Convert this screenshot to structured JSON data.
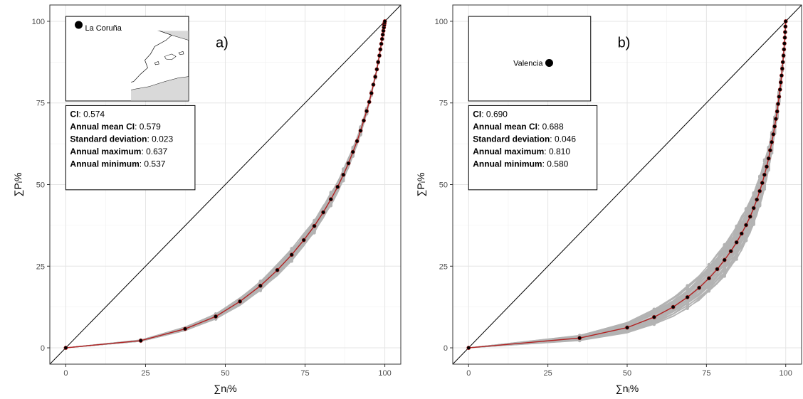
{
  "chart_data": [
    {
      "type": "line",
      "panel_label": "a)",
      "xlabel": "∑nᵢ%",
      "ylabel": "∑Pᵢ%",
      "xlim": [
        -5,
        105
      ],
      "ylim": [
        -5,
        105
      ],
      "x_ticks": [
        0,
        25,
        50,
        75,
        100
      ],
      "y_ticks": [
        0,
        25,
        50,
        75,
        100
      ],
      "grid": true,
      "diagonal": true,
      "location": "La Coruña",
      "colors": {
        "annual": "#b3b3b3",
        "mean_line": "#b22222",
        "mean_points": "#000000",
        "map_land": "#d9d9d9"
      },
      "stats": [
        {
          "label": "CI",
          "value": ": 0.574"
        },
        {
          "label": "Annual mean CI",
          "value": ": 0.579"
        },
        {
          "label": "Standard deviation",
          "value": ": 0.023"
        },
        {
          "label": "Annual maximum",
          "value": ": 0.637"
        },
        {
          "label": "Annual minimum",
          "value": ": 0.537"
        }
      ],
      "series": [
        {
          "role": "overall",
          "x": [
            0,
            23.5,
            37.4,
            47.0,
            54.6,
            61.0,
            66.3,
            70.8,
            74.6,
            77.9,
            80.7,
            83.1,
            85.2,
            87.0,
            88.6,
            90.0,
            91.3,
            92.4,
            93.4,
            94.3,
            95.1,
            95.8,
            96.4,
            97.0,
            97.5,
            97.9,
            98.3,
            98.6,
            98.9,
            99.15,
            99.35,
            99.55,
            99.7,
            99.82,
            99.92,
            100
          ],
          "y": [
            0,
            2.2,
            5.8,
            9.6,
            14.2,
            19.0,
            23.8,
            28.5,
            33.0,
            37.3,
            41.5,
            45.5,
            49.3,
            53.0,
            56.5,
            60.0,
            63.3,
            66.5,
            69.6,
            72.5,
            75.3,
            78.0,
            80.6,
            83.0,
            85.3,
            87.5,
            89.5,
            91.4,
            93.1,
            94.6,
            95.9,
            97.1,
            98.1,
            98.9,
            99.5,
            100
          ]
        }
      ],
      "annual_band": {
        "series_count": 60,
        "ci_min": 0.537,
        "ci_max": 0.637
      }
    },
    {
      "type": "line",
      "panel_label": "b)",
      "xlabel": "∑nᵢ%",
      "ylabel": "∑Pᵢ%",
      "xlim": [
        -5,
        105
      ],
      "ylim": [
        -5,
        105
      ],
      "x_ticks": [
        0,
        25,
        50,
        75,
        100
      ],
      "y_ticks": [
        0,
        25,
        50,
        75,
        100
      ],
      "grid": true,
      "diagonal": true,
      "location": "Valencia",
      "colors": {
        "annual": "#b3b3b3",
        "mean_line": "#b22222",
        "mean_points": "#000000",
        "map_land": "#d9d9d9"
      },
      "stats": [
        {
          "label": "CI",
          "value": ": 0.690"
        },
        {
          "label": "Annual mean CI",
          "value": ": 0.688"
        },
        {
          "label": "Standard deviation",
          "value": ": 0.046"
        },
        {
          "label": "Annual maximum",
          "value": ": 0.810"
        },
        {
          "label": "Annual minimum",
          "value": ": 0.580"
        }
      ],
      "series": [
        {
          "role": "overall",
          "x": [
            0,
            35.0,
            50.0,
            58.5,
            64.5,
            69.0,
            72.7,
            75.8,
            78.4,
            80.7,
            82.7,
            84.5,
            86.1,
            87.5,
            88.8,
            89.9,
            90.9,
            91.8,
            92.6,
            93.3,
            94.0,
            94.6,
            95.1,
            95.6,
            96.1,
            96.5,
            96.9,
            97.3,
            97.6,
            97.9,
            98.2,
            98.45,
            98.7,
            98.9,
            99.1,
            99.3,
            99.45,
            99.6,
            99.72,
            99.82,
            99.91,
            100
          ],
          "y": [
            0,
            3.0,
            6.2,
            9.4,
            12.5,
            15.5,
            18.4,
            21.3,
            24.1,
            26.9,
            29.6,
            32.3,
            35.0,
            37.6,
            40.2,
            42.8,
            45.4,
            48.0,
            50.5,
            53.0,
            55.5,
            58.0,
            60.5,
            63.0,
            65.4,
            67.8,
            70.1,
            72.4,
            74.7,
            76.9,
            79.1,
            81.3,
            83.4,
            85.5,
            87.5,
            89.5,
            91.4,
            93.2,
            95.0,
            96.7,
            98.4,
            100
          ]
        }
      ],
      "annual_band": {
        "series_count": 60,
        "ci_min": 0.58,
        "ci_max": 0.81
      }
    }
  ]
}
